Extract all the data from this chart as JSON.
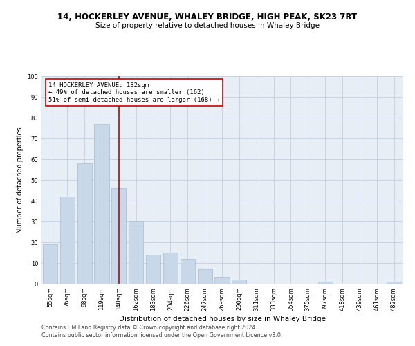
{
  "title": "14, HOCKERLEY AVENUE, WHALEY BRIDGE, HIGH PEAK, SK23 7RT",
  "subtitle": "Size of property relative to detached houses in Whaley Bridge",
  "xlabel": "Distribution of detached houses by size in Whaley Bridge",
  "ylabel": "Number of detached properties",
  "bar_labels": [
    "55sqm",
    "76sqm",
    "98sqm",
    "119sqm",
    "140sqm",
    "162sqm",
    "183sqm",
    "204sqm",
    "226sqm",
    "247sqm",
    "269sqm",
    "290sqm",
    "311sqm",
    "333sqm",
    "354sqm",
    "375sqm",
    "397sqm",
    "418sqm",
    "439sqm",
    "461sqm",
    "482sqm"
  ],
  "bar_values": [
    19,
    42,
    58,
    77,
    46,
    30,
    14,
    15,
    12,
    7,
    3,
    2,
    0,
    0,
    0,
    0,
    1,
    0,
    0,
    0,
    1
  ],
  "bar_color": "#c8d8e8",
  "bar_edge_color": "#a8bece",
  "vline_x": 4,
  "vline_color": "#cc0000",
  "annotation_text": "14 HOCKERLEY AVENUE: 132sqm\n← 49% of detached houses are smaller (162)\n51% of semi-detached houses are larger (168) →",
  "annotation_box_color": "#ffffff",
  "annotation_box_edge": "#cc0000",
  "ylim": [
    0,
    100
  ],
  "yticks": [
    0,
    10,
    20,
    30,
    40,
    50,
    60,
    70,
    80,
    90,
    100
  ],
  "grid_color": "#c8d4e4",
  "bg_color": "#e8eef6",
  "footer1": "Contains HM Land Registry data © Crown copyright and database right 2024.",
  "footer2": "Contains public sector information licensed under the Open Government Licence v3.0.",
  "title_fontsize": 8.5,
  "subtitle_fontsize": 7.5,
  "xlabel_fontsize": 7.5,
  "ylabel_fontsize": 7,
  "tick_fontsize": 6,
  "annotation_fontsize": 6.5,
  "footer_fontsize": 5.8
}
